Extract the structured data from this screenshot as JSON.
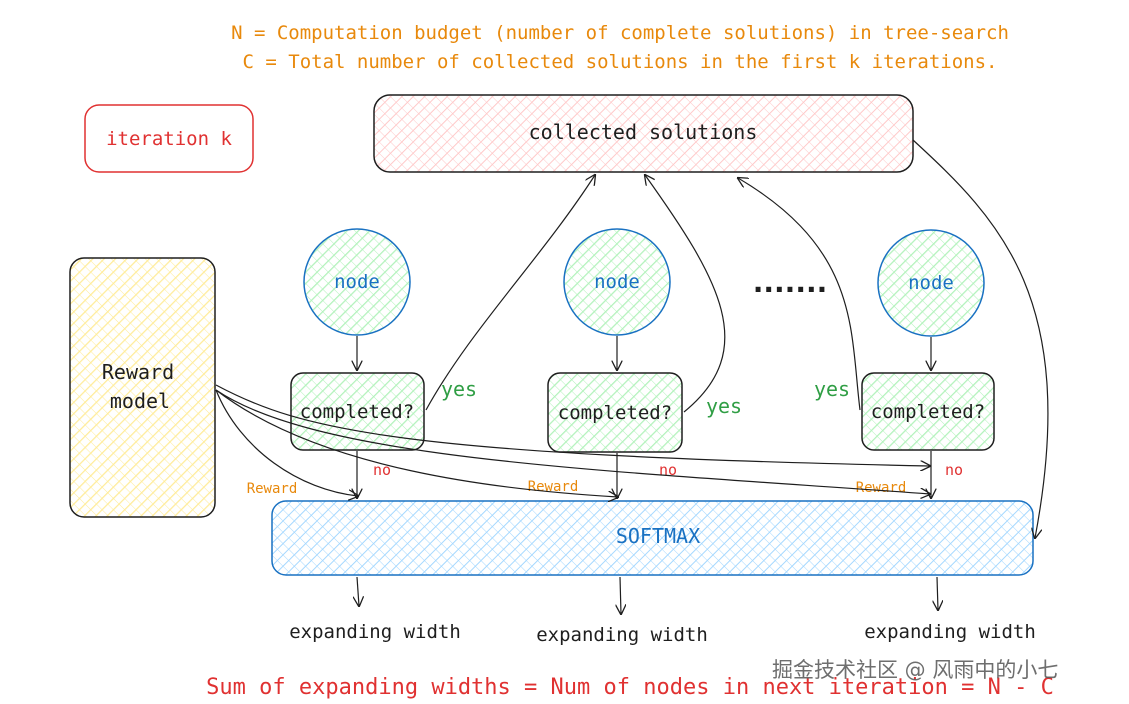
{
  "header": {
    "line1": "N = Computation budget (number of complete solutions) in tree-search",
    "line2": "C = Total number of collected solutions in the first k iterations."
  },
  "iteration_label": "iteration k",
  "collected_label": "collected solutions",
  "reward_model_label": [
    "Reward",
    "model"
  ],
  "nodes": [
    {
      "node": "node",
      "completed": "completed?",
      "yes": "yes",
      "no": "no",
      "reward": "Reward",
      "expand": "expanding width"
    },
    {
      "node": "node",
      "completed": "completed?",
      "yes": "yes",
      "no": "no",
      "reward": "Reward",
      "expand": "expanding width"
    },
    {
      "node": "node",
      "completed": "completed?",
      "yes": "yes",
      "no": "no",
      "reward": "Reward",
      "expand": "expanding width"
    }
  ],
  "ellipsis": ".......",
  "softmax_label": "SOFTMAX",
  "footer": "Sum of expanding widths = Num of nodes in next iteration = N - C",
  "watermark": "掘金技术社区 @ 风雨中的小七",
  "colors": {
    "orange": "#e8890c",
    "red": "#e03131",
    "green": "#2f9e44",
    "blue": "#1971c2",
    "node_fill": "#b2f2bb",
    "collected_fill": "#ffc9c9",
    "reward_fill": "#ffec99",
    "softmax_fill": "#a5d8ff"
  }
}
